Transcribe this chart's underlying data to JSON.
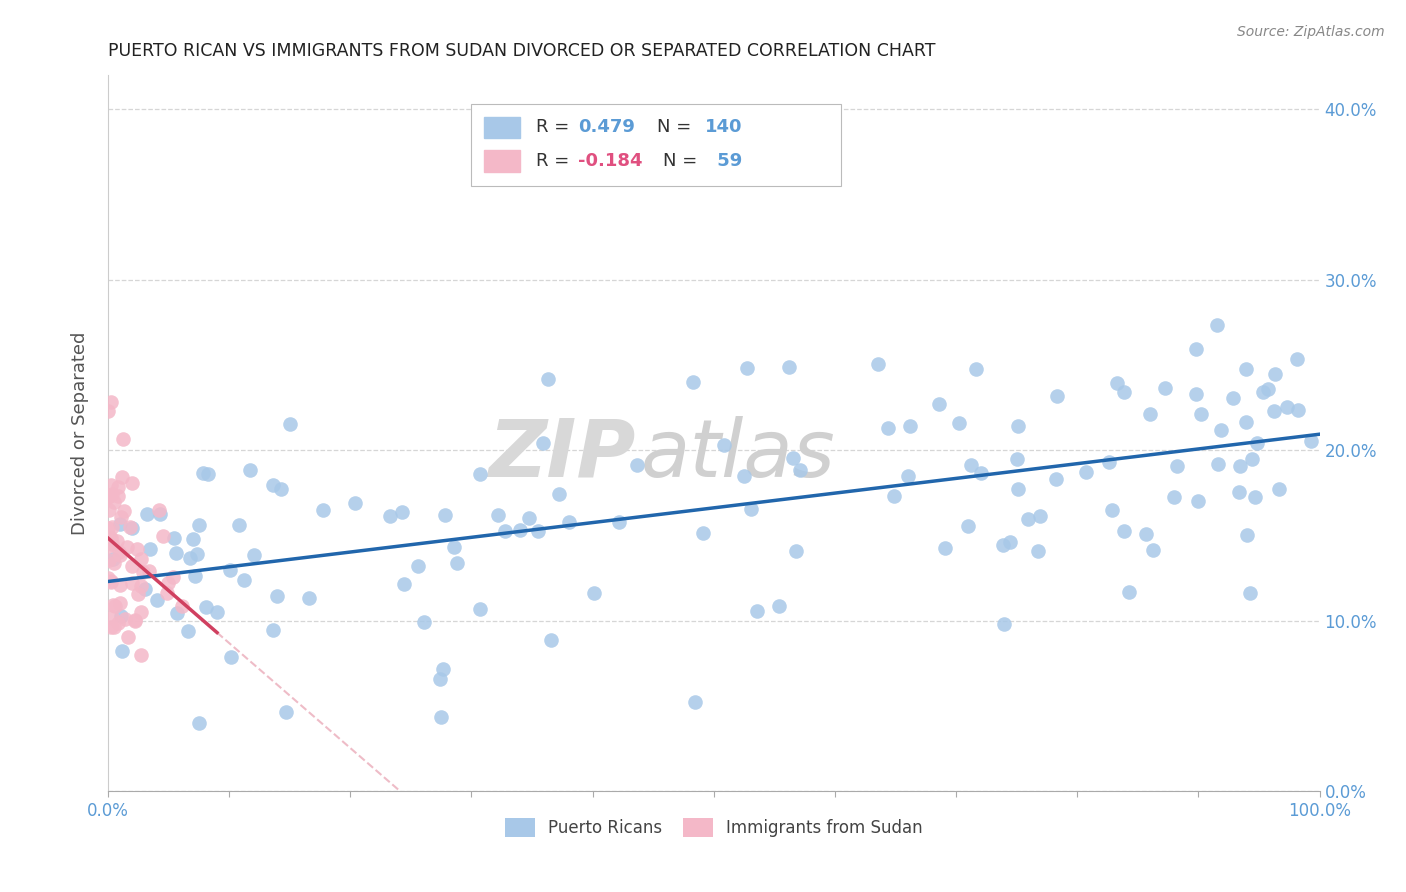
{
  "title": "PUERTO RICAN VS IMMIGRANTS FROM SUDAN DIVORCED OR SEPARATED CORRELATION CHART",
  "source": "Source: ZipAtlas.com",
  "ylabel": "Divorced or Separated",
  "legend_label1": "Puerto Ricans",
  "legend_label2": "Immigrants from Sudan",
  "r1": 0.479,
  "n1": 140,
  "r2": -0.184,
  "n2": 59,
  "blue_color": "#a8c8e8",
  "pink_color": "#f4b8c8",
  "blue_line_color": "#2166ac",
  "pink_line_color": "#d04060",
  "pink_dashed_color": "#e8a0b0",
  "background_color": "#ffffff",
  "grid_color": "#cccccc",
  "watermark_zip": "ZIP",
  "watermark_atlas": "atlas",
  "y_ticks": [
    0.0,
    0.1,
    0.2,
    0.3,
    0.4
  ],
  "xlim": [
    0.0,
    1.0
  ],
  "ylim": [
    0.0,
    0.42
  ],
  "blue_scatter_seed": 7,
  "pink_scatter_seed": 13
}
